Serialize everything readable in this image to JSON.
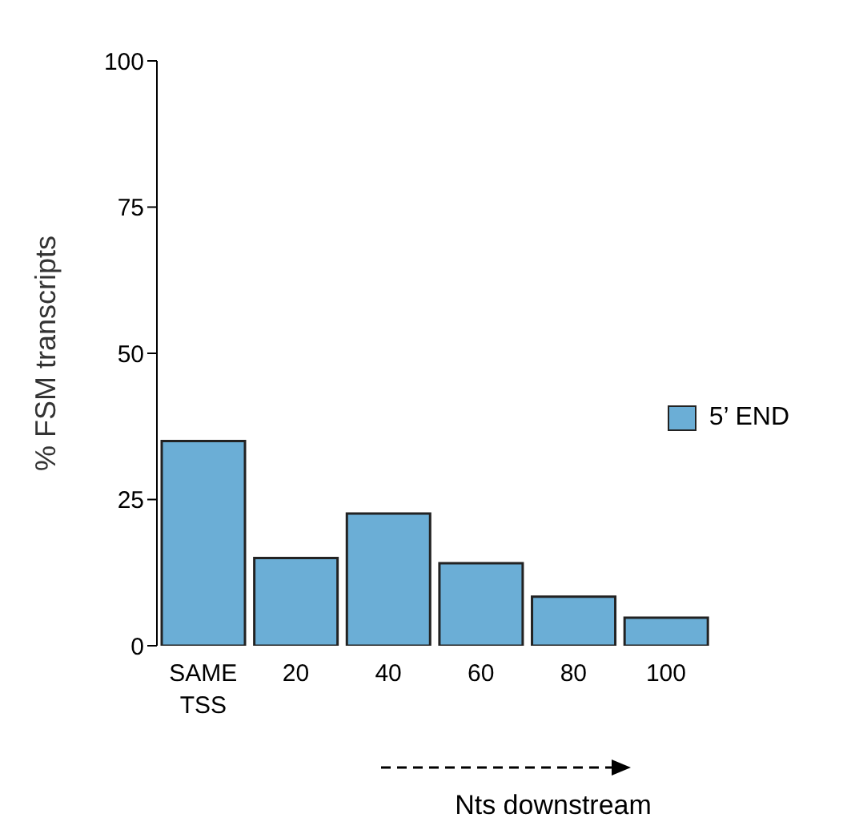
{
  "chart_data": {
    "type": "bar",
    "xlabel": "Nts downstream",
    "ylabel": "% FSM transcripts",
    "categories": [
      "SAME TSS",
      "20",
      "40",
      "60",
      "80",
      "100"
    ],
    "series": [
      {
        "name": "5’ END",
        "color": "#6baed6",
        "values": [
          35,
          15,
          22.6,
          14.1,
          8.4,
          4.8
        ]
      }
    ],
    "ylim": [
      0,
      100
    ],
    "yticks": [
      0,
      25,
      50,
      75,
      100
    ],
    "grid": false,
    "legend": "right"
  }
}
